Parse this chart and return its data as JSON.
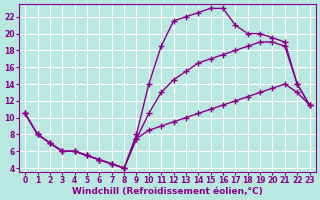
{
  "background_color": "#b8e8e0",
  "grid_color": "#ffffff",
  "line_color": "#8b008b",
  "marker": "+",
  "markersize": 4,
  "linewidth": 1.0,
  "xlabel": "Windchill (Refroidissement éolien,°C)",
  "xlabel_fontsize": 6.5,
  "tick_fontsize": 5.5,
  "xlim": [
    -0.5,
    23.5
  ],
  "ylim": [
    3.5,
    23.5
  ],
  "xticks": [
    0,
    1,
    2,
    3,
    4,
    5,
    6,
    7,
    8,
    9,
    10,
    11,
    12,
    13,
    14,
    15,
    16,
    17,
    18,
    19,
    20,
    21,
    22,
    23
  ],
  "yticks": [
    4,
    6,
    8,
    10,
    12,
    14,
    16,
    18,
    20,
    22
  ],
  "series": [
    {
      "x": [
        0,
        1,
        2,
        3,
        4,
        5,
        6,
        7,
        8,
        9,
        10,
        11,
        12,
        13,
        14,
        15,
        16,
        17,
        18,
        19,
        20,
        21,
        22,
        23
      ],
      "y": [
        10.5,
        8.0,
        7.0,
        6.0,
        6.0,
        5.5,
        5.0,
        4.5,
        4.0,
        8.0,
        14.0,
        18.5,
        21.5,
        22.0,
        22.5,
        23.0,
        23.0,
        21.0,
        20.0,
        20.0,
        19.5,
        19.0,
        14.0,
        11.5
      ]
    },
    {
      "x": [
        0,
        1,
        2,
        3,
        4,
        5,
        6,
        7,
        8,
        9,
        10,
        11,
        12,
        13,
        14,
        15,
        16,
        17,
        18,
        19,
        20,
        21,
        22,
        23
      ],
      "y": [
        10.5,
        8.0,
        7.0,
        6.0,
        6.0,
        5.5,
        5.0,
        4.5,
        4.0,
        7.5,
        10.5,
        13.0,
        14.5,
        15.5,
        16.5,
        17.0,
        17.5,
        18.0,
        18.5,
        19.0,
        19.0,
        18.5,
        14.0,
        11.5
      ]
    },
    {
      "x": [
        0,
        1,
        2,
        3,
        4,
        5,
        6,
        7,
        8,
        9,
        10,
        11,
        12,
        13,
        14,
        15,
        16,
        17,
        18,
        19,
        20,
        21,
        22,
        23
      ],
      "y": [
        10.5,
        8.0,
        7.0,
        6.0,
        6.0,
        5.5,
        5.0,
        4.5,
        4.0,
        7.5,
        8.5,
        9.0,
        9.5,
        10.0,
        10.5,
        11.0,
        11.5,
        12.0,
        12.5,
        13.0,
        13.5,
        14.0,
        13.0,
        11.5
      ]
    }
  ]
}
